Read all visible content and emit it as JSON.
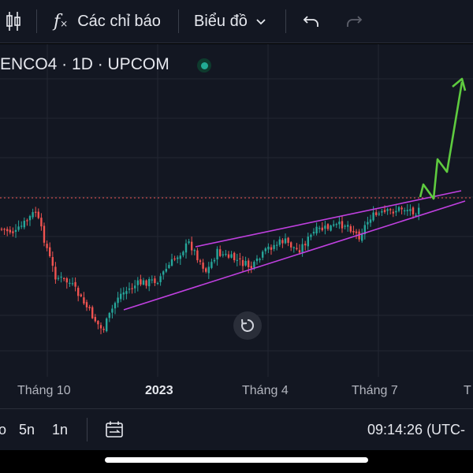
{
  "toolbar": {
    "candles_icon": "candlestick-icon",
    "indicators_label": "Các chỉ báo",
    "chart_label": "Biểu đồ"
  },
  "chart": {
    "symbol": "ENCO4 · 1D · UPCOM",
    "x_labels": [
      "Tháng 10",
      "2023",
      "Tháng 4",
      "Tháng 7",
      "T"
    ],
    "colors": {
      "up": "#26a69a",
      "down": "#ef5350",
      "trend": "#c040e0",
      "projection": "#5ecb3f",
      "price_line": "#ef5350"
    }
  },
  "bottombar": {
    "ranges": [
      "o",
      "5n",
      "1n"
    ],
    "time": "09:14:26 (UTC-"
  }
}
